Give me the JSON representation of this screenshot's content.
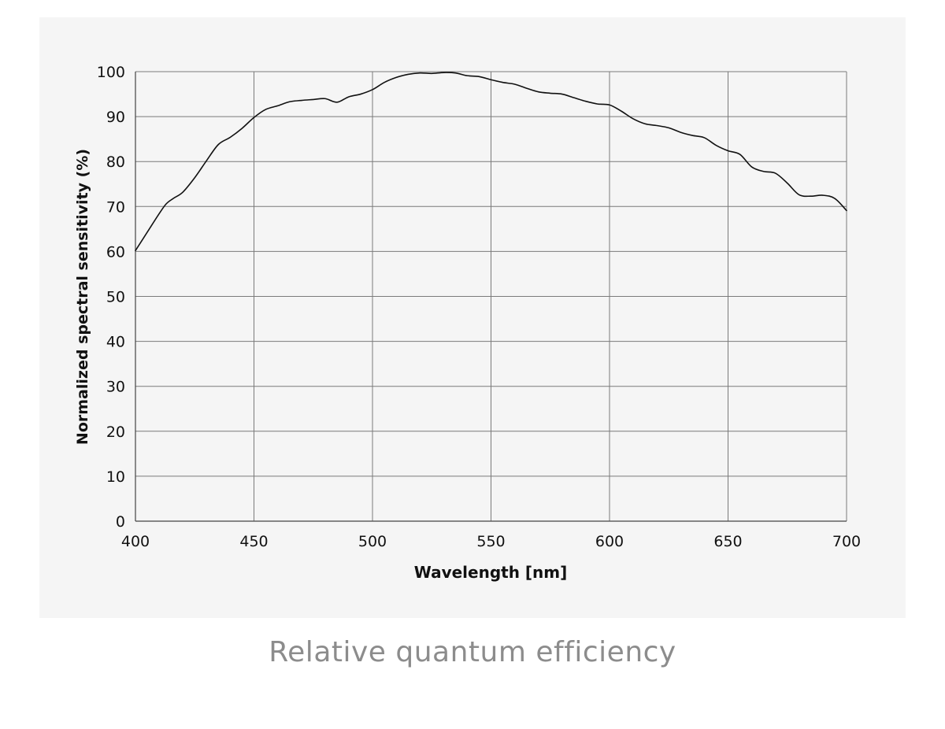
{
  "caption": "Relative quantum efficiency",
  "chart_data": {
    "type": "line",
    "title": "",
    "xlabel": "Wavelength [nm]",
    "ylabel": "Normalized spectral sensitivity (%)",
    "xlim": [
      400,
      700
    ],
    "ylim": [
      0,
      100
    ],
    "xticks": [
      400,
      450,
      500,
      550,
      600,
      650,
      700
    ],
    "yticks": [
      0,
      10,
      20,
      30,
      40,
      50,
      60,
      70,
      80,
      90,
      100
    ],
    "grid": true,
    "line_color": "#111111",
    "grid_color": "#7a7a7a",
    "series": [
      {
        "x": [
          400,
          405,
          410,
          413,
          416,
          420,
          425,
          430,
          435,
          440,
          445,
          450,
          455,
          460,
          465,
          470,
          475,
          480,
          485,
          490,
          495,
          500,
          505,
          510,
          515,
          520,
          525,
          530,
          535,
          540,
          545,
          550,
          555,
          560,
          565,
          570,
          575,
          580,
          585,
          590,
          595,
          600,
          605,
          610,
          615,
          620,
          625,
          630,
          635,
          640,
          645,
          650,
          655,
          660,
          665,
          670,
          675,
          680,
          685,
          690,
          695,
          700
        ],
        "y": [
          60.2,
          64.3,
          68.4,
          70.6,
          71.8,
          73.2,
          76.4,
          80.2,
          83.8,
          85.4,
          87.4,
          89.8,
          91.6,
          92.4,
          93.3,
          93.6,
          93.8,
          94.0,
          93.2,
          94.4,
          95.0,
          96.0,
          97.6,
          98.7,
          99.4,
          99.7,
          99.6,
          99.8,
          99.7,
          99.1,
          98.9,
          98.2,
          97.6,
          97.2,
          96.3,
          95.5,
          95.2,
          95.0,
          94.2,
          93.4,
          92.8,
          92.6,
          91.2,
          89.5,
          88.4,
          88.0,
          87.5,
          86.5,
          85.8,
          85.3,
          83.6,
          82.4,
          81.6,
          78.8,
          77.8,
          77.4,
          75.2,
          72.6,
          72.3,
          72.5,
          71.8,
          69.1
        ]
      }
    ]
  }
}
